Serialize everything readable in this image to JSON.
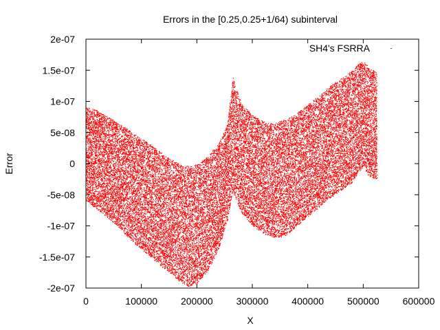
{
  "chart_data": {
    "type": "scatter",
    "title": "Errors in the [0.25,0.25+1/64) subinterval",
    "xlabel": "X",
    "ylabel": "Error",
    "xlim": [
      0,
      600000
    ],
    "ylim": [
      -2e-07,
      2e-07
    ],
    "x_ticks": [
      0,
      100000,
      200000,
      300000,
      400000,
      500000,
      600000
    ],
    "x_tick_labels": [
      "0",
      "100000",
      "200000",
      "300000",
      "400000",
      "500000",
      "600000"
    ],
    "y_ticks": [
      -2e-07,
      -1.5e-07,
      -1e-07,
      -5e-08,
      0,
      5e-08,
      1e-07,
      1.5e-07,
      2e-07
    ],
    "y_tick_labels": [
      "-2e-07",
      "-1.5e-07",
      "-1e-07",
      "-5e-08",
      "0",
      "5e-08",
      "1e-07",
      "1.5e-07",
      "2e-07"
    ],
    "legend_position": "top-right",
    "series": [
      {
        "name": "SH4's FSRRA",
        "color": "#ff0000",
        "marker": "dot",
        "x_range": [
          0,
          524288
        ],
        "upper_envelope": {
          "x": [
            0,
            2000,
            5000,
            15000,
            30000,
            50000,
            80000,
            110000,
            140000,
            170000,
            185000,
            200000,
            220000,
            240000,
            255000,
            262000,
            265000,
            268000,
            280000,
            300000,
            320000,
            340000,
            360000,
            380000,
            400000,
            420000,
            440000,
            460000,
            480000,
            490000,
            500000,
            510000,
            520000,
            524288
          ],
          "y": [
            9e-08,
            9e-08,
            9e-08,
            8.8e-08,
            8e-08,
            7e-08,
            5.3e-08,
            3.5e-08,
            1.5e-08,
            -1.5e-09,
            -2.5e-09,
            -1e-09,
            1.2e-08,
            3.5e-08,
            6.5e-08,
            1.2e-07,
            1.4e-07,
            1.3e-07,
            9.8e-08,
            7.8e-08,
            6.8e-08,
            6.5e-08,
            7.2e-08,
            8.2e-08,
            9.5e-08,
            1.1e-07,
            1.25e-07,
            1.38e-07,
            1.5e-07,
            1.6e-07,
            1.65e-07,
            1.55e-07,
            1.5e-07,
            1.48e-07
          ]
        },
        "lower_envelope": {
          "x": [
            0,
            2000,
            5000,
            15000,
            30000,
            50000,
            80000,
            110000,
            140000,
            170000,
            185000,
            200000,
            220000,
            240000,
            255000,
            262000,
            265000,
            268000,
            280000,
            300000,
            320000,
            340000,
            360000,
            380000,
            400000,
            420000,
            440000,
            460000,
            480000,
            490000,
            500000,
            510000,
            520000,
            524288
          ],
          "y": [
            -6e-08,
            -6e-08,
            -6.2e-08,
            -7e-08,
            -8e-08,
            -9.5e-08,
            -1.22e-07,
            -1.45e-07,
            -1.68e-07,
            -1.9e-07,
            -1.97e-07,
            -1.92e-07,
            -1.72e-07,
            -1.35e-07,
            -9e-08,
            -5.5e-08,
            -4.5e-08,
            -5.2e-08,
            -7.8e-08,
            -1e-07,
            -1.12e-07,
            -1.2e-07,
            -1.15e-07,
            -1e-07,
            -8.5e-08,
            -7e-08,
            -5.5e-08,
            -4.2e-08,
            -3e-08,
            -1.5e-08,
            -5e-09,
            -2e-08,
            -2.5e-08,
            -2.5e-08
          ]
        }
      }
    ]
  }
}
